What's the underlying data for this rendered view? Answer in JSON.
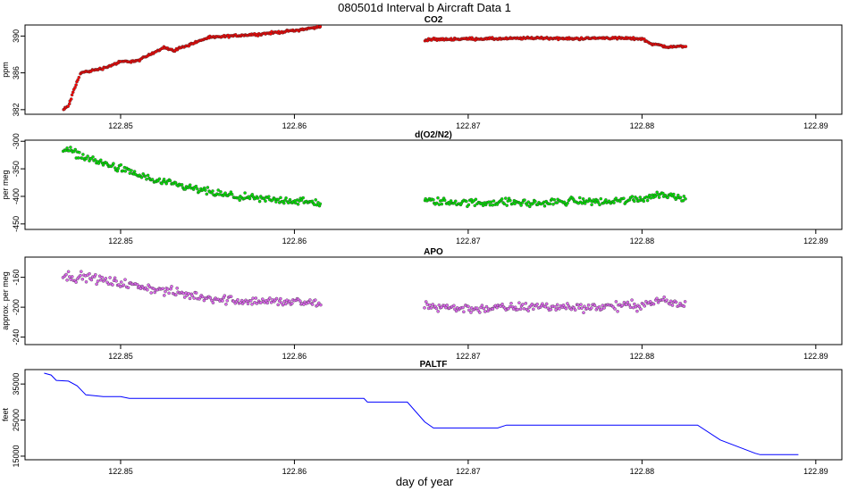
{
  "header": {
    "title": "080501d   Interval b Aircraft Data 1"
  },
  "footer": {
    "xlabel": "day of year"
  },
  "colors": {
    "co2": "#ff0000",
    "o2n2": "#00e000",
    "apo": "#dd66ee",
    "paltf": "#0000ff"
  },
  "chart_data": [
    {
      "type": "scatter",
      "title": "CO2",
      "xlabel": "day of year",
      "ylabel": "ppm",
      "xlim": [
        122.8445,
        122.8915
      ],
      "ylim": [
        381.5,
        391.2
      ],
      "xticks": [
        "122.85",
        "122.86",
        "122.87",
        "122.88",
        "122.89"
      ],
      "yticks": [
        "382",
        "386",
        "390"
      ],
      "series": [
        {
          "segments": [
            {
              "x": [
                122.8467,
                122.847,
                122.8474,
                122.8477,
                122.849,
                122.85,
                122.851,
                122.8525,
                122.853,
                122.854,
                122.855,
                122.857,
                122.858,
                122.86,
                122.8615
              ],
              "y": [
                382.0,
                382.4,
                384.5,
                386.0,
                386.5,
                387.2,
                387.3,
                388.8,
                388.4,
                389.1,
                389.8,
                390.1,
                390.2,
                390.6,
                391.0
              ]
            },
            {
              "x": [
                122.8675,
                122.87,
                122.872,
                122.874,
                122.876,
                122.878,
                122.88,
                122.8805,
                122.8815,
                122.8825
              ],
              "y": [
                389.6,
                389.7,
                389.7,
                389.8,
                389.7,
                389.8,
                389.7,
                389.2,
                388.8,
                388.9
              ]
            }
          ]
        }
      ]
    },
    {
      "type": "scatter",
      "title": "d(O2/N2)",
      "xlabel": "day of year",
      "ylabel": "per meg",
      "xlim": [
        122.8445,
        122.8915
      ],
      "ylim": [
        -460,
        -298
      ],
      "xticks": [
        "122.85",
        "122.86",
        "122.87",
        "122.88",
        "122.89"
      ],
      "yticks": [
        "-450",
        "-400",
        "-350",
        "-300"
      ],
      "series": [
        {
          "segments": [
            {
              "x": [
                122.8467,
                122.848,
                122.85,
                122.852,
                122.854,
                122.856,
                122.858,
                122.86,
                122.8615
              ],
              "y": [
                -312,
                -330,
                -350,
                -372,
                -385,
                -398,
                -405,
                -408,
                -413
              ]
            },
            {
              "x": [
                122.8675,
                122.87,
                122.872,
                122.874,
                122.876,
                122.878,
                122.88,
                122.881,
                122.8825
              ],
              "y": [
                -408,
                -412,
                -410,
                -413,
                -408,
                -410,
                -404,
                -396,
                -402
              ]
            }
          ]
        }
      ]
    },
    {
      "type": "scatter",
      "title": "APO",
      "xlabel": "day of year",
      "ylabel": "approx. per meg",
      "xlim": [
        122.8445,
        122.8915
      ],
      "ylim": [
        -250,
        -133
      ],
      "xticks": [
        "122.85",
        "122.86",
        "122.87",
        "122.88",
        "122.89"
      ],
      "yticks": [
        "-240",
        "-200",
        "-160"
      ],
      "series": [
        {
          "segments": [
            {
              "x": [
                122.8467,
                122.848,
                122.85,
                122.852,
                122.854,
                122.856,
                122.858,
                122.86,
                122.8615
              ],
              "y": [
                -158,
                -160,
                -168,
                -176,
                -184,
                -190,
                -192,
                -193,
                -196
              ]
            },
            {
              "x": [
                122.8675,
                122.87,
                122.872,
                122.874,
                122.876,
                122.878,
                122.88,
                122.881,
                122.8825
              ],
              "y": [
                -198,
                -202,
                -201,
                -199,
                -200,
                -199,
                -197,
                -191,
                -198
              ]
            }
          ]
        }
      ]
    },
    {
      "type": "line",
      "title": "PALTF",
      "xlabel": "day of year",
      "ylabel": "feet",
      "xlim": [
        122.8445,
        122.8915
      ],
      "ylim": [
        14000,
        39000
      ],
      "xticks": [
        "122.85",
        "122.86",
        "122.87",
        "122.88",
        "122.89"
      ],
      "yticks": [
        "15000",
        "25000",
        "35000"
      ],
      "series": [
        {
          "x": [
            122.8456,
            122.846,
            122.8463,
            122.847,
            122.8475,
            122.848,
            122.849,
            122.85,
            122.8505,
            122.854,
            122.86,
            122.864,
            122.8642,
            122.8665,
            122.8675,
            122.868,
            122.8717,
            122.8722,
            122.876,
            122.88,
            122.8832,
            122.8845,
            122.8865,
            122.8868,
            122.889
          ],
          "y": [
            38000,
            37500,
            36000,
            35800,
            34500,
            32000,
            31500,
            31500,
            31000,
            31000,
            31000,
            31000,
            30000,
            30000,
            24500,
            22800,
            22800,
            23600,
            23600,
            23600,
            23600,
            19500,
            15800,
            15400,
            15400
          ]
        }
      ]
    }
  ]
}
